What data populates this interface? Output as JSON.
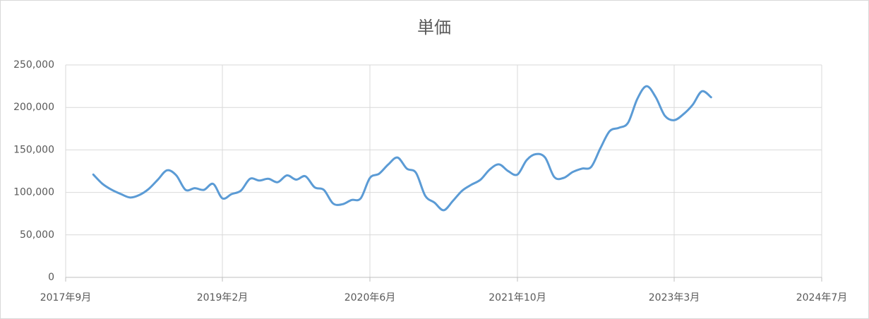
{
  "chart_data": {
    "type": "line",
    "title": "単価",
    "x": [
      "2017-12",
      "2018-01",
      "2018-02",
      "2018-03",
      "2018-04",
      "2018-05",
      "2018-06",
      "2018-07",
      "2018-08",
      "2018-09",
      "2018-10",
      "2018-11",
      "2018-12",
      "2019-01",
      "2019-02",
      "2019-03",
      "2019-04",
      "2019-05",
      "2019-06",
      "2019-07",
      "2019-08",
      "2019-09",
      "2019-10",
      "2019-11",
      "2019-12",
      "2020-01",
      "2020-02",
      "2020-03",
      "2020-04",
      "2020-05",
      "2020-06",
      "2020-07",
      "2020-08",
      "2020-09",
      "2020-10",
      "2020-11",
      "2020-12",
      "2021-01",
      "2021-02",
      "2021-03",
      "2021-04",
      "2021-05",
      "2021-06",
      "2021-07",
      "2021-08",
      "2021-09",
      "2021-10",
      "2021-11",
      "2021-12",
      "2022-01",
      "2022-02",
      "2022-03",
      "2022-04",
      "2022-05",
      "2022-06",
      "2022-07",
      "2022-08",
      "2022-09",
      "2022-10",
      "2022-11",
      "2022-12",
      "2023-01",
      "2023-02",
      "2023-03",
      "2023-04",
      "2023-05",
      "2023-06",
      "2023-07"
    ],
    "series": [
      {
        "name": "単価",
        "color": "#5b9bd5",
        "values": [
          121000,
          110000,
          103000,
          98000,
          94000,
          97000,
          104000,
          115000,
          126000,
          120000,
          103000,
          105000,
          103000,
          110000,
          93000,
          98000,
          102000,
          116000,
          114000,
          116000,
          112000,
          120000,
          115000,
          119000,
          106000,
          103000,
          87000,
          86000,
          91000,
          93000,
          117000,
          122000,
          133000,
          141000,
          128000,
          123000,
          96000,
          88000,
          79000,
          90000,
          102000,
          109000,
          115000,
          127000,
          133000,
          125000,
          121000,
          138000,
          145000,
          141000,
          118000,
          117000,
          124000,
          128000,
          130000,
          152000,
          172000,
          176000,
          182000,
          210000,
          225000,
          212000,
          190000,
          185000,
          192000,
          203000,
          219000,
          212000
        ]
      }
    ],
    "xlim": [
      "2017-09",
      "2024-07"
    ],
    "xticks": [
      {
        "value": "2017-09",
        "label": "2017年9月"
      },
      {
        "value": "2019-02",
        "label": "2019年2月"
      },
      {
        "value": "2020-06",
        "label": "2020年6月"
      },
      {
        "value": "2021-10",
        "label": "2021年10月"
      },
      {
        "value": "2023-03",
        "label": "2023年3月"
      },
      {
        "value": "2024-07",
        "label": "2024年7月"
      }
    ],
    "ylim": [
      0,
      250000
    ],
    "yticks": [
      0,
      {
        "value": 50000,
        "label": "50,000"
      },
      {
        "value": 100000,
        "label": "100,000"
      },
      {
        "value": 150000,
        "label": "150,000"
      },
      {
        "value": 200000,
        "label": "200,000"
      },
      {
        "value": 250000,
        "label": "250,000"
      }
    ],
    "grid": true
  }
}
